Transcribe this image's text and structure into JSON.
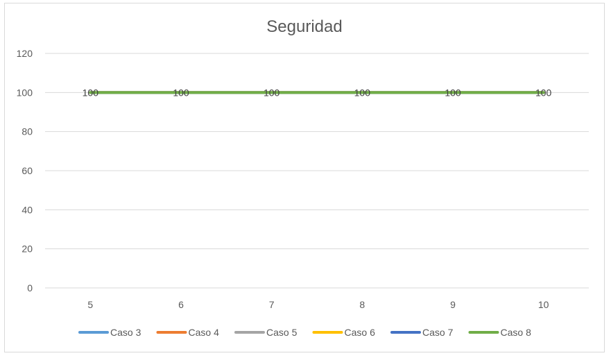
{
  "chart_data": {
    "type": "line",
    "title": "Seguridad",
    "xlabel": "",
    "ylabel": "",
    "categories": [
      "5",
      "6",
      "7",
      "8",
      "9",
      "10"
    ],
    "ylim": [
      0,
      120
    ],
    "yticks": [
      0,
      20,
      40,
      60,
      80,
      100,
      120
    ],
    "grid": true,
    "legend_position": "bottom",
    "series": [
      {
        "name": "Caso 3",
        "color": "#5b9bd5",
        "values": [
          100,
          100,
          100,
          100,
          100,
          100
        ]
      },
      {
        "name": "Caso 4",
        "color": "#ed7d31",
        "values": [
          100,
          100,
          100,
          100,
          100,
          100
        ]
      },
      {
        "name": "Caso 5",
        "color": "#a5a5a5",
        "values": [
          100,
          100,
          100,
          100,
          100,
          100
        ]
      },
      {
        "name": "Caso 6",
        "color": "#ffc000",
        "values": [
          100,
          100,
          100,
          100,
          100,
          100
        ]
      },
      {
        "name": "Caso 7",
        "color": "#4472c4",
        "values": [
          100,
          100,
          100,
          100,
          100,
          100
        ]
      },
      {
        "name": "Caso 8",
        "color": "#70ad47",
        "values": [
          100,
          100,
          100,
          100,
          100,
          100
        ]
      }
    ],
    "data_labels": [
      "100",
      "100",
      "100",
      "100",
      "100",
      "100"
    ]
  }
}
